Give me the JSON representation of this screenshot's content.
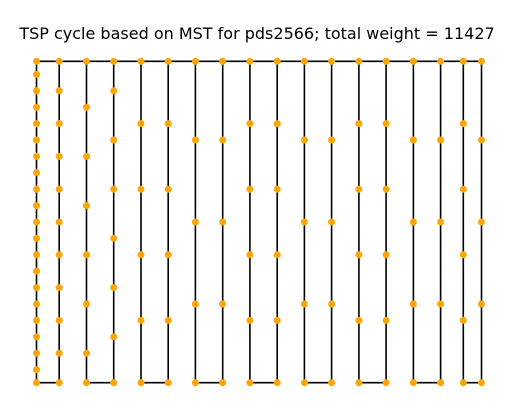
{
  "chart_data": {
    "type": "scatter",
    "title": "TSP cycle based on MST for pds2566; total weight = 11427",
    "xlabel": "",
    "ylabel": "",
    "axes_visible": false,
    "grid": false,
    "legend": "none",
    "description_of_marks": "2566 nodes drawn as orange dots joined by a closed black tour path",
    "colors": {
      "node_fill": "#FFA500",
      "edge": "#000000",
      "background": "#FFFFFF"
    },
    "xlim": [
      0,
      100
    ],
    "ylim": [
      0,
      100
    ],
    "series": [
      {
        "kind": "tour",
        "sample_points": [
          [
            1,
            99
          ],
          [
            1,
            95
          ],
          [
            1,
            90
          ],
          [
            1,
            85
          ],
          [
            1,
            80
          ],
          [
            1,
            75
          ],
          [
            1,
            70
          ],
          [
            1,
            65
          ],
          [
            1,
            60
          ],
          [
            1,
            55
          ],
          [
            1,
            50
          ],
          [
            1,
            45
          ],
          [
            1,
            40
          ],
          [
            1,
            35
          ],
          [
            1,
            30
          ],
          [
            1,
            25
          ],
          [
            1,
            20
          ],
          [
            1,
            15
          ],
          [
            1,
            10
          ],
          [
            1,
            5
          ],
          [
            1,
            1
          ],
          [
            6,
            1
          ],
          [
            6,
            10
          ],
          [
            6,
            20
          ],
          [
            6,
            30
          ],
          [
            6,
            40
          ],
          [
            6,
            50
          ],
          [
            6,
            60
          ],
          [
            6,
            70
          ],
          [
            6,
            80
          ],
          [
            6,
            90
          ],
          [
            6,
            99
          ],
          [
            12,
            99
          ],
          [
            12,
            85
          ],
          [
            12,
            70
          ],
          [
            12,
            55
          ],
          [
            12,
            40
          ],
          [
            12,
            25
          ],
          [
            12,
            10
          ],
          [
            12,
            1
          ],
          [
            18,
            1
          ],
          [
            18,
            15
          ],
          [
            18,
            30
          ],
          [
            18,
            45
          ],
          [
            18,
            60
          ],
          [
            18,
            75
          ],
          [
            18,
            90
          ],
          [
            18,
            99
          ],
          [
            24,
            99
          ],
          [
            24,
            80
          ],
          [
            24,
            60
          ],
          [
            24,
            40
          ],
          [
            24,
            20
          ],
          [
            24,
            1
          ],
          [
            30,
            1
          ],
          [
            30,
            20
          ],
          [
            30,
            40
          ],
          [
            30,
            60
          ],
          [
            30,
            80
          ],
          [
            30,
            99
          ],
          [
            36,
            99
          ],
          [
            36,
            75
          ],
          [
            36,
            50
          ],
          [
            36,
            25
          ],
          [
            36,
            1
          ],
          [
            42,
            1
          ],
          [
            42,
            25
          ],
          [
            42,
            50
          ],
          [
            42,
            75
          ],
          [
            42,
            99
          ],
          [
            48,
            99
          ],
          [
            48,
            80
          ],
          [
            48,
            60
          ],
          [
            48,
            40
          ],
          [
            48,
            20
          ],
          [
            48,
            1
          ],
          [
            54,
            1
          ],
          [
            54,
            20
          ],
          [
            54,
            40
          ],
          [
            54,
            60
          ],
          [
            54,
            80
          ],
          [
            54,
            99
          ],
          [
            60,
            99
          ],
          [
            60,
            75
          ],
          [
            60,
            50
          ],
          [
            60,
            25
          ],
          [
            60,
            1
          ],
          [
            66,
            1
          ],
          [
            66,
            25
          ],
          [
            66,
            50
          ],
          [
            66,
            75
          ],
          [
            66,
            99
          ],
          [
            72,
            99
          ],
          [
            72,
            80
          ],
          [
            72,
            60
          ],
          [
            72,
            40
          ],
          [
            72,
            20
          ],
          [
            72,
            1
          ],
          [
            78,
            1
          ],
          [
            78,
            20
          ],
          [
            78,
            40
          ],
          [
            78,
            60
          ],
          [
            78,
            80
          ],
          [
            78,
            99
          ],
          [
            84,
            99
          ],
          [
            84,
            75
          ],
          [
            84,
            50
          ],
          [
            84,
            25
          ],
          [
            84,
            1
          ],
          [
            90,
            1
          ],
          [
            90,
            25
          ],
          [
            90,
            50
          ],
          [
            90,
            75
          ],
          [
            90,
            99
          ],
          [
            95,
            99
          ],
          [
            95,
            80
          ],
          [
            95,
            60
          ],
          [
            95,
            40
          ],
          [
            95,
            20
          ],
          [
            95,
            1
          ],
          [
            99,
            1
          ],
          [
            99,
            25
          ],
          [
            99,
            50
          ],
          [
            99,
            75
          ],
          [
            99,
            99
          ]
        ]
      }
    ]
  }
}
